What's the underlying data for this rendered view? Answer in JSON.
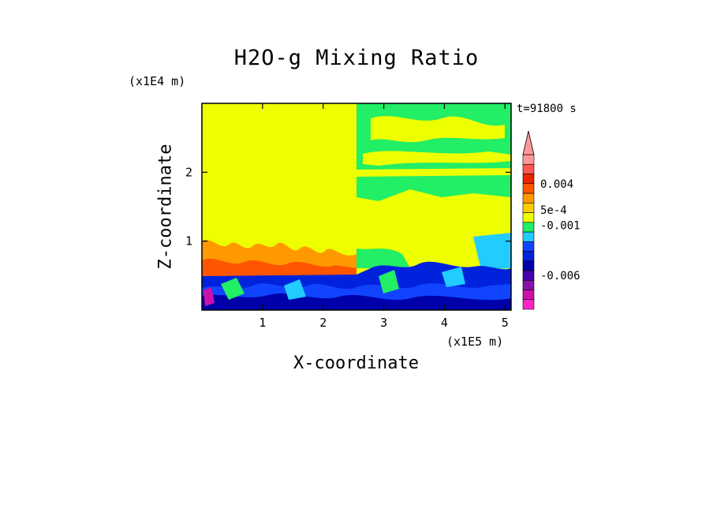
{
  "chart_data": {
    "type": "heatmap",
    "title": "H2O-g Mixing Ratio",
    "xlabel": "X-coordinate",
    "ylabel": "Z-coordinate",
    "x_multiplier": "(x1E5 m)",
    "y_multiplier": "(x1E4 m)",
    "timestamp": "t=91800 s",
    "xlim": [
      0,
      5.1
    ],
    "ylim": [
      0,
      3.0
    ],
    "x_ticks": [
      1,
      2,
      3,
      4,
      5
    ],
    "y_ticks": [
      1,
      2
    ],
    "x_tick_labels": [
      "1",
      "2",
      "3",
      "4",
      "5"
    ],
    "y_tick_labels": [
      "1",
      "2"
    ],
    "colorbar": {
      "colors": [
        "#ff22cc",
        "#cc11aa",
        "#8811aa",
        "#4400aa",
        "#0000aa",
        "#0022dd",
        "#1144ff",
        "#22ccff",
        "#22ee66",
        "#eeff00",
        "#ffcc00",
        "#ff9900",
        "#ff5500",
        "#ee2200",
        "#ff5555",
        "#ff9999"
      ],
      "labels": [
        "0.004",
        "5e-4",
        "-0.001",
        "-0.006"
      ],
      "extend": "max"
    }
  }
}
